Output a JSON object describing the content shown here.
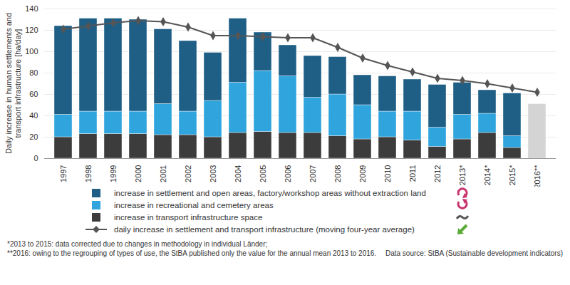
{
  "chart_data": {
    "type": "bar",
    "stacked": true,
    "y_label": "Daily increase in human settlements and transport infrastructure [ha/day]",
    "categories": [
      "1997",
      "1998",
      "1999",
      "2000",
      "2001",
      "2002",
      "2003",
      "2004",
      "2005",
      "2006",
      "2007",
      "2008",
      "2009",
      "2010",
      "2011",
      "2012",
      "2013*",
      "2014*",
      "2015*",
      "2016**"
    ],
    "series": [
      {
        "name": "increase in settlement and open areas, factory/workshop areas without extraction land",
        "color": "#1f5f86",
        "values": [
          83,
          87,
          87,
          86,
          70,
          66,
          45,
          60,
          36,
          29,
          39,
          35,
          28,
          33,
          30,
          40,
          30,
          22,
          40,
          null
        ]
      },
      {
        "name": "increase in recreational and cemetery areas",
        "color": "#2fa4dd",
        "values": [
          21,
          21,
          21,
          21,
          29,
          22,
          34,
          47,
          57,
          53,
          33,
          39,
          32,
          24,
          27,
          18,
          23,
          18,
          11,
          null
        ]
      },
      {
        "name": "increase in transport infrastructure space",
        "color": "#3c3c3c",
        "values": [
          20,
          23,
          23,
          23,
          22,
          22,
          20,
          24,
          25,
          24,
          24,
          21,
          18,
          20,
          17,
          11,
          18,
          24,
          10,
          null
        ]
      },
      {
        "color": "#d4d4d4",
        "values": [
          null,
          null,
          null,
          null,
          null,
          null,
          null,
          null,
          null,
          null,
          null,
          null,
          null,
          null,
          null,
          null,
          null,
          null,
          null,
          51
        ]
      },
      {
        "name": "daily increase in settlement and transport infrastructure (moving four-year average)",
        "type": "line",
        "marker": "diamond",
        "color": "#555555",
        "values": [
          121,
          124,
          127,
          129,
          128,
          123,
          115,
          115,
          114,
          113,
          113,
          104,
          94,
          87,
          81,
          75,
          73,
          70,
          66,
          62
        ]
      }
    ],
    "ylim": [
      0,
      140
    ],
    "yticks": [
      0,
      20,
      40,
      60,
      80,
      100,
      120,
      140
    ],
    "grid": true,
    "notes": [
      "*2013 to 2015: data corrected due to changes in methodology in individual Länder;",
      "**2016: owing to the regrouping of types of use, the StBA published only the value for the annual mean 2013 to 2016."
    ],
    "source": "Data source: StBA (Sustainable development indicators)"
  }
}
